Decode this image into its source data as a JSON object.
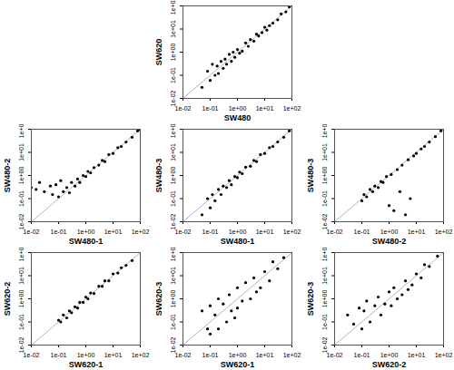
{
  "chart_data": [
    {
      "type": "scatter",
      "xlabel": "SW480",
      "ylabel": "SW620",
      "log": true,
      "color": "#000000",
      "xlim": [
        0.01,
        100
      ],
      "ylim": [
        0.01,
        100
      ],
      "xticks": [
        {
          "value": 0.01,
          "label": "1e-02"
        },
        {
          "value": 0.1,
          "label": "1e-01"
        },
        {
          "value": 1,
          "label": "1e+00"
        },
        {
          "value": 10,
          "label": "1e+01"
        },
        {
          "value": 100,
          "label": "1e+02"
        }
      ],
      "yticks": [
        {
          "value": 0.01,
          "label": "1e-02"
        },
        {
          "value": 0.1,
          "label": "1e-01"
        },
        {
          "value": 1,
          "label": "1e+00"
        },
        {
          "value": 10,
          "label": "1e+01"
        },
        {
          "value": 100,
          "label": "1e+02"
        }
      ],
      "x": [
        0.05,
        0.08,
        0.1,
        0.12,
        0.15,
        0.18,
        0.2,
        0.25,
        0.3,
        0.35,
        0.4,
        0.5,
        0.6,
        0.7,
        0.8,
        1,
        1.2,
        1.5,
        2,
        2.5,
        3,
        4,
        5,
        6,
        8,
        10,
        12,
        15,
        20,
        30,
        40,
        60,
        80
      ],
      "y": [
        0.03,
        0.15,
        0.06,
        0.3,
        0.1,
        0.25,
        0.12,
        0.4,
        0.2,
        0.5,
        0.3,
        0.8,
        0.4,
        1,
        0.6,
        1.3,
        0.9,
        1.1,
        2.5,
        1.8,
        3.5,
        3,
        6,
        5,
        7,
        12,
        9,
        14,
        18,
        25,
        45,
        55,
        90
      ]
    },
    {
      "type": "scatter",
      "xlabel": "SW480-1",
      "ylabel": "SW480-2",
      "log": true,
      "color": "#000000",
      "xlim": [
        0.01,
        100
      ],
      "ylim": [
        0.01,
        100
      ],
      "xticks": [
        {
          "value": 0.01,
          "label": "1e-02"
        },
        {
          "value": 0.1,
          "label": "1e-01"
        },
        {
          "value": 1,
          "label": "1e+00"
        },
        {
          "value": 10,
          "label": "1e+01"
        },
        {
          "value": 100,
          "label": "1e+02"
        }
      ],
      "yticks": [
        {
          "value": 0.01,
          "label": "1e-02"
        },
        {
          "value": 0.1,
          "label": "1e-01"
        },
        {
          "value": 1,
          "label": "1e+00"
        },
        {
          "value": 10,
          "label": "1e+01"
        },
        {
          "value": 100,
          "label": "1e+02"
        }
      ],
      "x": [
        0.01,
        0.015,
        0.02,
        0.03,
        0.05,
        0.06,
        0.08,
        0.1,
        0.12,
        0.15,
        0.2,
        0.25,
        0.3,
        0.4,
        0.5,
        0.6,
        0.8,
        1,
        1.2,
        1.5,
        2,
        3,
        4,
        5,
        7,
        10,
        15,
        20,
        30,
        50,
        80,
        100
      ],
      "y": [
        0.3,
        0.25,
        0.5,
        0.2,
        0.35,
        0.15,
        0.4,
        0.12,
        0.6,
        0.2,
        0.3,
        0.18,
        0.5,
        0.35,
        0.7,
        0.5,
        1,
        0.9,
        1.5,
        1.3,
        2.2,
        2.8,
        4.5,
        4,
        8,
        9,
        16,
        18,
        28,
        45,
        85,
        95
      ]
    },
    {
      "type": "scatter",
      "xlabel": "SW480-1",
      "ylabel": "SW480-3",
      "log": true,
      "color": "#000000",
      "xlim": [
        0.01,
        100
      ],
      "ylim": [
        0.01,
        100
      ],
      "xticks": [
        {
          "value": 0.01,
          "label": "1e-02"
        },
        {
          "value": 0.1,
          "label": "1e-01"
        },
        {
          "value": 1,
          "label": "1e+00"
        },
        {
          "value": 10,
          "label": "1e+01"
        },
        {
          "value": 100,
          "label": "1e+02"
        }
      ],
      "yticks": [
        {
          "value": 0.01,
          "label": "1e-02"
        },
        {
          "value": 0.1,
          "label": "1e-01"
        },
        {
          "value": 1,
          "label": "1e+00"
        },
        {
          "value": 10,
          "label": "1e+01"
        },
        {
          "value": 100,
          "label": "1e+02"
        }
      ],
      "x": [
        0.05,
        0.08,
        0.1,
        0.12,
        0.15,
        0.2,
        0.25,
        0.3,
        0.4,
        0.5,
        0.6,
        0.8,
        1,
        1.2,
        1.5,
        2,
        3,
        4,
        5,
        7,
        10,
        15,
        20,
        30,
        50,
        80
      ],
      "y": [
        0.02,
        0.1,
        0.04,
        0.15,
        0.08,
        0.25,
        0.15,
        0.35,
        0.3,
        0.6,
        0.4,
        0.9,
        0.8,
        1.4,
        1.2,
        2.3,
        2.5,
        4.5,
        4,
        8,
        9,
        16,
        18,
        28,
        45,
        85
      ]
    },
    {
      "type": "scatter",
      "xlabel": "SW480-2",
      "ylabel": "SW480-3",
      "log": true,
      "color": "#000000",
      "xlim": [
        0.01,
        100
      ],
      "ylim": [
        0.01,
        100
      ],
      "xticks": [
        {
          "value": 0.01,
          "label": "1e-02"
        },
        {
          "value": 0.1,
          "label": "1e-01"
        },
        {
          "value": 1,
          "label": "1e+00"
        },
        {
          "value": 10,
          "label": "1e+01"
        },
        {
          "value": 100,
          "label": "1e+02"
        }
      ],
      "yticks": [
        {
          "value": 0.01,
          "label": "1e-02"
        },
        {
          "value": 0.1,
          "label": "1e-01"
        },
        {
          "value": 1,
          "label": "1e+00"
        },
        {
          "value": 10,
          "label": "1e+01"
        },
        {
          "value": 100,
          "label": "1e+02"
        }
      ],
      "x": [
        0.1,
        0.12,
        0.15,
        0.2,
        0.25,
        0.3,
        0.4,
        0.5,
        0.6,
        0.8,
        1,
        1.2,
        1.5,
        2,
        2.5,
        3,
        4,
        5,
        6,
        8,
        10,
        15,
        20,
        30,
        50,
        80
      ],
      "y": [
        0.08,
        0.15,
        0.12,
        0.25,
        0.2,
        0.35,
        0.3,
        0.55,
        0.5,
        0.9,
        0.05,
        1.1,
        0.03,
        1.8,
        0.2,
        2.8,
        0.02,
        4.8,
        0.1,
        7,
        9,
        14,
        18,
        28,
        48,
        85
      ]
    },
    {
      "type": "scatter",
      "xlabel": "SW620-1",
      "ylabel": "SW620-2",
      "log": true,
      "color": "#000000",
      "xlim": [
        0.01,
        100
      ],
      "ylim": [
        0.01,
        100
      ],
      "xticks": [
        {
          "value": 0.01,
          "label": "1e-02"
        },
        {
          "value": 0.1,
          "label": "1e-01"
        },
        {
          "value": 1,
          "label": "1e+00"
        },
        {
          "value": 10,
          "label": "1e+01"
        },
        {
          "value": 100,
          "label": "1e+02"
        }
      ],
      "yticks": [
        {
          "value": 0.01,
          "label": "1e-02"
        },
        {
          "value": 0.1,
          "label": "1e-01"
        },
        {
          "value": 1,
          "label": "1e+00"
        },
        {
          "value": 10,
          "label": "1e+01"
        },
        {
          "value": 100,
          "label": "1e+02"
        }
      ],
      "x": [
        0.1,
        0.12,
        0.15,
        0.2,
        0.25,
        0.3,
        0.4,
        0.5,
        0.6,
        0.8,
        1,
        1.2,
        1.5,
        2,
        3,
        4,
        5,
        7,
        10,
        15,
        20,
        30,
        50
      ],
      "y": [
        0.12,
        0.1,
        0.2,
        0.15,
        0.3,
        0.25,
        0.45,
        0.4,
        0.7,
        0.7,
        1.2,
        1,
        1.8,
        1.7,
        3.5,
        3.5,
        6,
        6,
        12,
        13,
        22,
        28,
        45
      ]
    },
    {
      "type": "scatter",
      "xlabel": "SW620-1",
      "ylabel": "SW620-3",
      "log": true,
      "color": "#000000",
      "xlim": [
        0.01,
        100
      ],
      "ylim": [
        0.01,
        100
      ],
      "xticks": [
        {
          "value": 0.01,
          "label": "1e-02"
        },
        {
          "value": 0.1,
          "label": "1e-01"
        },
        {
          "value": 1,
          "label": "1e+00"
        },
        {
          "value": 10,
          "label": "1e+01"
        },
        {
          "value": 100,
          "label": "1e+02"
        }
      ],
      "yticks": [
        {
          "value": 0.01,
          "label": "1e-02"
        },
        {
          "value": 0.1,
          "label": "1e-01"
        },
        {
          "value": 1,
          "label": "1e+00"
        },
        {
          "value": 10,
          "label": "1e+01"
        },
        {
          "value": 100,
          "label": "1e+02"
        }
      ],
      "x": [
        0.05,
        0.08,
        0.1,
        0.1,
        0.15,
        0.2,
        0.2,
        0.3,
        0.4,
        0.5,
        0.6,
        0.8,
        1,
        1,
        1.5,
        2,
        3,
        4,
        5,
        7,
        10,
        15,
        20,
        30,
        50
      ],
      "y": [
        0.3,
        0.05,
        0.5,
        0.03,
        0.2,
        1,
        0.05,
        0.6,
        0.1,
        1.5,
        0.3,
        0.15,
        3,
        0.4,
        0.8,
        5,
        1,
        8,
        2,
        3,
        15,
        6,
        40,
        20,
        60
      ]
    },
    {
      "type": "scatter",
      "xlabel": "SW620-2",
      "ylabel": "SW620-3",
      "log": true,
      "color": "#000000",
      "xlim": [
        0.01,
        100
      ],
      "ylim": [
        0.01,
        100
      ],
      "xticks": [
        {
          "value": 0.01,
          "label": "1e-02"
        },
        {
          "value": 0.1,
          "label": "1e-01"
        },
        {
          "value": 1,
          "label": "1e+00"
        },
        {
          "value": 10,
          "label": "1e+01"
        },
        {
          "value": 100,
          "label": "1e+02"
        }
      ],
      "yticks": [
        {
          "value": 0.01,
          "label": "1e-02"
        },
        {
          "value": 0.1,
          "label": "1e-01"
        },
        {
          "value": 1,
          "label": "1e+00"
        },
        {
          "value": 10,
          "label": "1e+01"
        },
        {
          "value": 100,
          "label": "1e+02"
        }
      ],
      "x": [
        0.03,
        0.05,
        0.08,
        0.1,
        0.12,
        0.15,
        0.2,
        0.3,
        0.4,
        0.5,
        0.7,
        1,
        1.2,
        1.5,
        2,
        3,
        4,
        5,
        7,
        10,
        15,
        20,
        30,
        60
      ],
      "y": [
        0.2,
        0.08,
        0.4,
        0.05,
        0.3,
        0.8,
        0.1,
        0.5,
        1.2,
        0.2,
        0.6,
        2,
        0.5,
        3,
        1,
        1.5,
        6,
        2.5,
        4,
        12,
        8,
        30,
        25,
        70
      ]
    }
  ]
}
